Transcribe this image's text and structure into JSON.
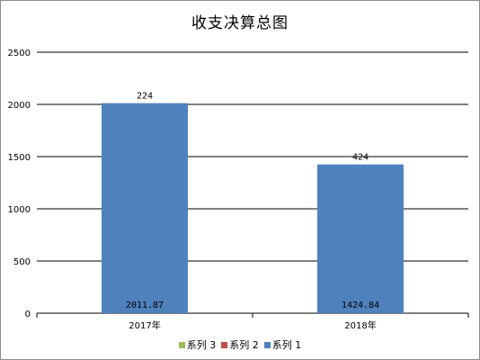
{
  "chart_data": {
    "type": "bar",
    "title": "收支决算总图",
    "xlabel": "",
    "ylabel": "",
    "categories": [
      "2017年",
      "2018年"
    ],
    "ylim": [
      0,
      2500
    ],
    "yticks": [
      "0",
      "500",
      "1000",
      "1500",
      "2000",
      "2500"
    ],
    "grid": true,
    "legend_position": "bottom",
    "series": [
      {
        "name": "系列 1",
        "color": "#4f81bd",
        "values": [
          2011.87,
          1424.84
        ],
        "value_labels": [
          "2011.87",
          "1424.84"
        ],
        "top_labels": [
          "224",
          "424"
        ]
      }
    ],
    "legend": [
      {
        "name": "系列 3",
        "color": "#9bbb59"
      },
      {
        "name": "系列 2",
        "color": "#c0504d"
      },
      {
        "name": "系列 1",
        "color": "#4f81bd"
      }
    ]
  }
}
